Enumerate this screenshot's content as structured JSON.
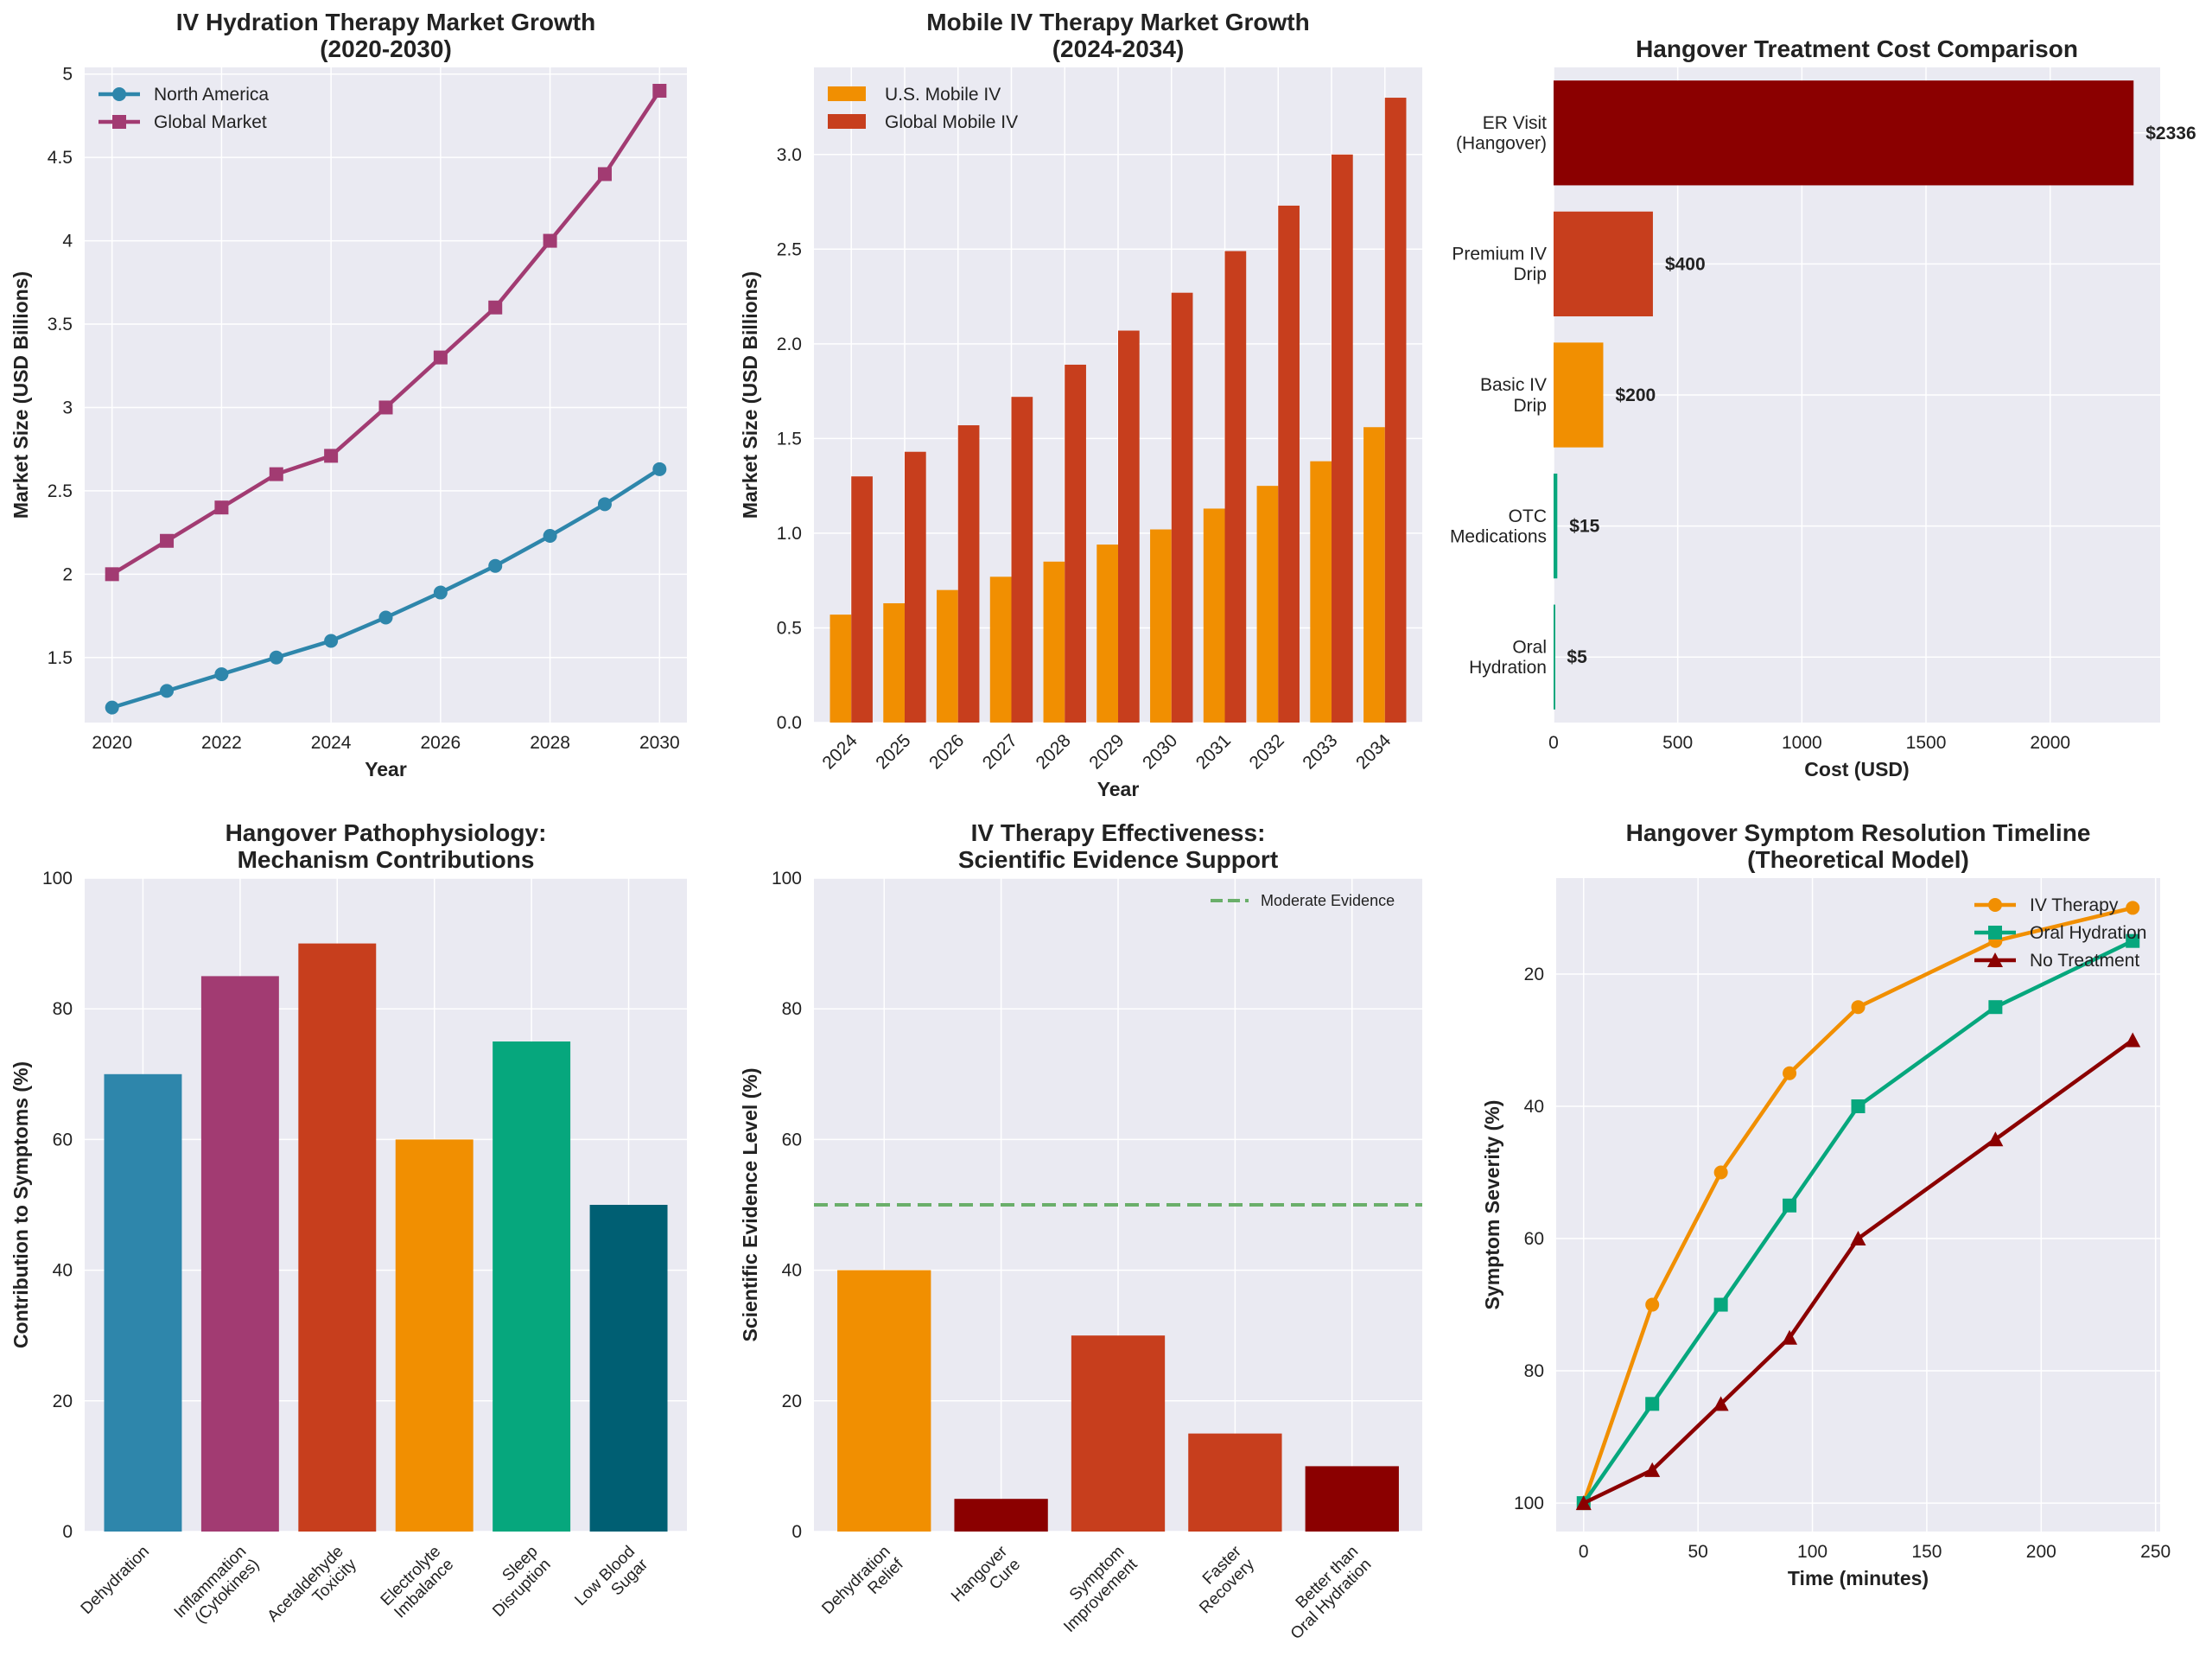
{
  "colors": {
    "background": "#EAEAF2",
    "grid": "#FFFFFF",
    "blue": "#2E86AB",
    "magenta": "#A23B72",
    "red_orange": "#C73E1D",
    "orange": "#F18F01",
    "green": "#06A77D",
    "dark_teal": "#005F73",
    "dark_red": "#8B0000",
    "evidence_line": "#6AAF6A"
  },
  "chart_data": [
    {
      "type": "line",
      "title": [
        "IV Hydration Therapy Market Growth",
        "(2020-2030)"
      ],
      "xlabel": "Year",
      "ylabel": "Market Size (USD Billions)",
      "x": [
        2020,
        2021,
        2022,
        2023,
        2024,
        2025,
        2026,
        2027,
        2028,
        2029,
        2030
      ],
      "xticks": [
        2020,
        2022,
        2024,
        2026,
        2028,
        2030
      ],
      "yticks": [
        1.5,
        2.0,
        2.5,
        3.0,
        3.5,
        4.0,
        4.5,
        5.0
      ],
      "xlim": [
        2019.5,
        2030.5
      ],
      "ylim": [
        1.11,
        5.04
      ],
      "grid": true,
      "legend": "top-left",
      "series": [
        {
          "name": "North America",
          "marker": "circle",
          "color": "#2E86AB",
          "values": [
            1.2,
            1.3,
            1.4,
            1.5,
            1.6,
            1.74,
            1.89,
            2.05,
            2.23,
            2.42,
            2.63
          ]
        },
        {
          "name": "Global Market",
          "marker": "square",
          "color": "#A23B72",
          "values": [
            2.0,
            2.2,
            2.4,
            2.6,
            2.71,
            3.0,
            3.3,
            3.6,
            4.0,
            4.4,
            4.9
          ]
        }
      ]
    },
    {
      "type": "bar",
      "title": [
        "Mobile IV Therapy Market Growth",
        "(2024-2034)"
      ],
      "xlabel": "Year",
      "ylabel": "Market Size (USD Billions)",
      "categories": [
        "2024",
        "2025",
        "2026",
        "2027",
        "2028",
        "2029",
        "2030",
        "2031",
        "2032",
        "2033",
        "2034"
      ],
      "yticks": [
        0.0,
        0.5,
        1.0,
        1.5,
        2.0,
        2.5,
        3.0
      ],
      "ylim": [
        0,
        3.46
      ],
      "grid": true,
      "legend": "top-left",
      "series": [
        {
          "name": "U.S. Mobile IV",
          "color": "#F18F01",
          "values": [
            0.57,
            0.63,
            0.7,
            0.77,
            0.85,
            0.94,
            1.02,
            1.13,
            1.25,
            1.38,
            1.56
          ]
        },
        {
          "name": "Global Mobile IV",
          "color": "#C73E1D",
          "values": [
            1.3,
            1.43,
            1.57,
            1.72,
            1.89,
            2.07,
            2.27,
            2.49,
            2.73,
            3.0,
            3.3
          ]
        }
      ]
    },
    {
      "type": "bar",
      "orientation": "horizontal",
      "title": [
        "Hangover Treatment Cost Comparison"
      ],
      "xlabel": "Cost (USD)",
      "ylabel": "",
      "categories": [
        "ER Visit\n(Hangover)",
        "Premium IV\nDrip",
        "Basic IV\nDrip",
        "OTC\nMedications",
        "Oral\nHydration"
      ],
      "values": [
        2336,
        400,
        200,
        15,
        5
      ],
      "data_labels": [
        "$2336",
        "$400",
        "$200",
        "$15",
        "$5"
      ],
      "colors": [
        "#8B0000",
        "#C73E1D",
        "#F18F01",
        "#06A77D",
        "#06A77D"
      ],
      "xticks": [
        0,
        500,
        1000,
        1500,
        2000
      ],
      "xlim": [
        0,
        2443
      ],
      "grid": true
    },
    {
      "type": "bar",
      "title": [
        "Hangover Pathophysiology:",
        "Mechanism Contributions"
      ],
      "xlabel": "",
      "ylabel": "Contribution to Symptoms (%)",
      "categories": [
        "Dehydration",
        "Inflammation\n(Cytokines)",
        "Acetaldehyde\nToxicity",
        "Electrolyte\nImbalance",
        "Sleep\nDisruption",
        "Low Blood\nSugar"
      ],
      "values": [
        70,
        85,
        90,
        60,
        75,
        50
      ],
      "colors": [
        "#2E86AB",
        "#A23B72",
        "#C73E1D",
        "#F18F01",
        "#06A77D",
        "#005F73"
      ],
      "yticks": [
        0,
        20,
        40,
        60,
        80,
        100
      ],
      "ylim": [
        0,
        100
      ],
      "grid": true
    },
    {
      "type": "bar",
      "title": [
        "IV Therapy Effectiveness:",
        "Scientific Evidence Support"
      ],
      "xlabel": "",
      "ylabel": "Scientific Evidence Level (%)",
      "categories": [
        "Dehydration\nRelief",
        "Hangover\nCure",
        "Symptom\nImprovement",
        "Faster\nRecovery",
        "Better than\nOral Hydration"
      ],
      "values": [
        40,
        5,
        30,
        15,
        10
      ],
      "colors": [
        "#F18F01",
        "#8B0000",
        "#C73E1D",
        "#C73E1D",
        "#8B0000"
      ],
      "yticks": [
        0,
        20,
        40,
        60,
        80,
        100
      ],
      "ylim": [
        0,
        100
      ],
      "grid": true,
      "reference_line": {
        "value": 50,
        "label": "Moderate Evidence",
        "style": "dashed"
      },
      "legend": "top-right"
    },
    {
      "type": "line",
      "title": [
        "Hangover Symptom Resolution Timeline",
        "(Theoretical Model)"
      ],
      "xlabel": "Time (minutes)",
      "ylabel": "Symptom Severity (%)",
      "x": [
        0,
        30,
        60,
        90,
        120,
        180,
        240
      ],
      "xticks": [
        0,
        50,
        100,
        150,
        200,
        250
      ],
      "yticks": [
        20,
        40,
        60,
        80,
        100
      ],
      "xlim": [
        -12,
        252
      ],
      "ylim": [
        104.3,
        5.5
      ],
      "y_inverted": true,
      "grid": true,
      "legend": "top-right",
      "series": [
        {
          "name": "IV Therapy",
          "marker": "circle",
          "color": "#F18F01",
          "values": [
            100,
            70,
            50,
            35,
            25,
            15,
            10
          ]
        },
        {
          "name": "Oral Hydration",
          "marker": "square",
          "color": "#06A77D",
          "values": [
            100,
            85,
            70,
            55,
            40,
            25,
            15
          ]
        },
        {
          "name": "No Treatment",
          "marker": "triangle",
          "color": "#8B0000",
          "values": [
            100,
            95,
            85,
            75,
            60,
            45,
            30
          ]
        }
      ]
    }
  ]
}
